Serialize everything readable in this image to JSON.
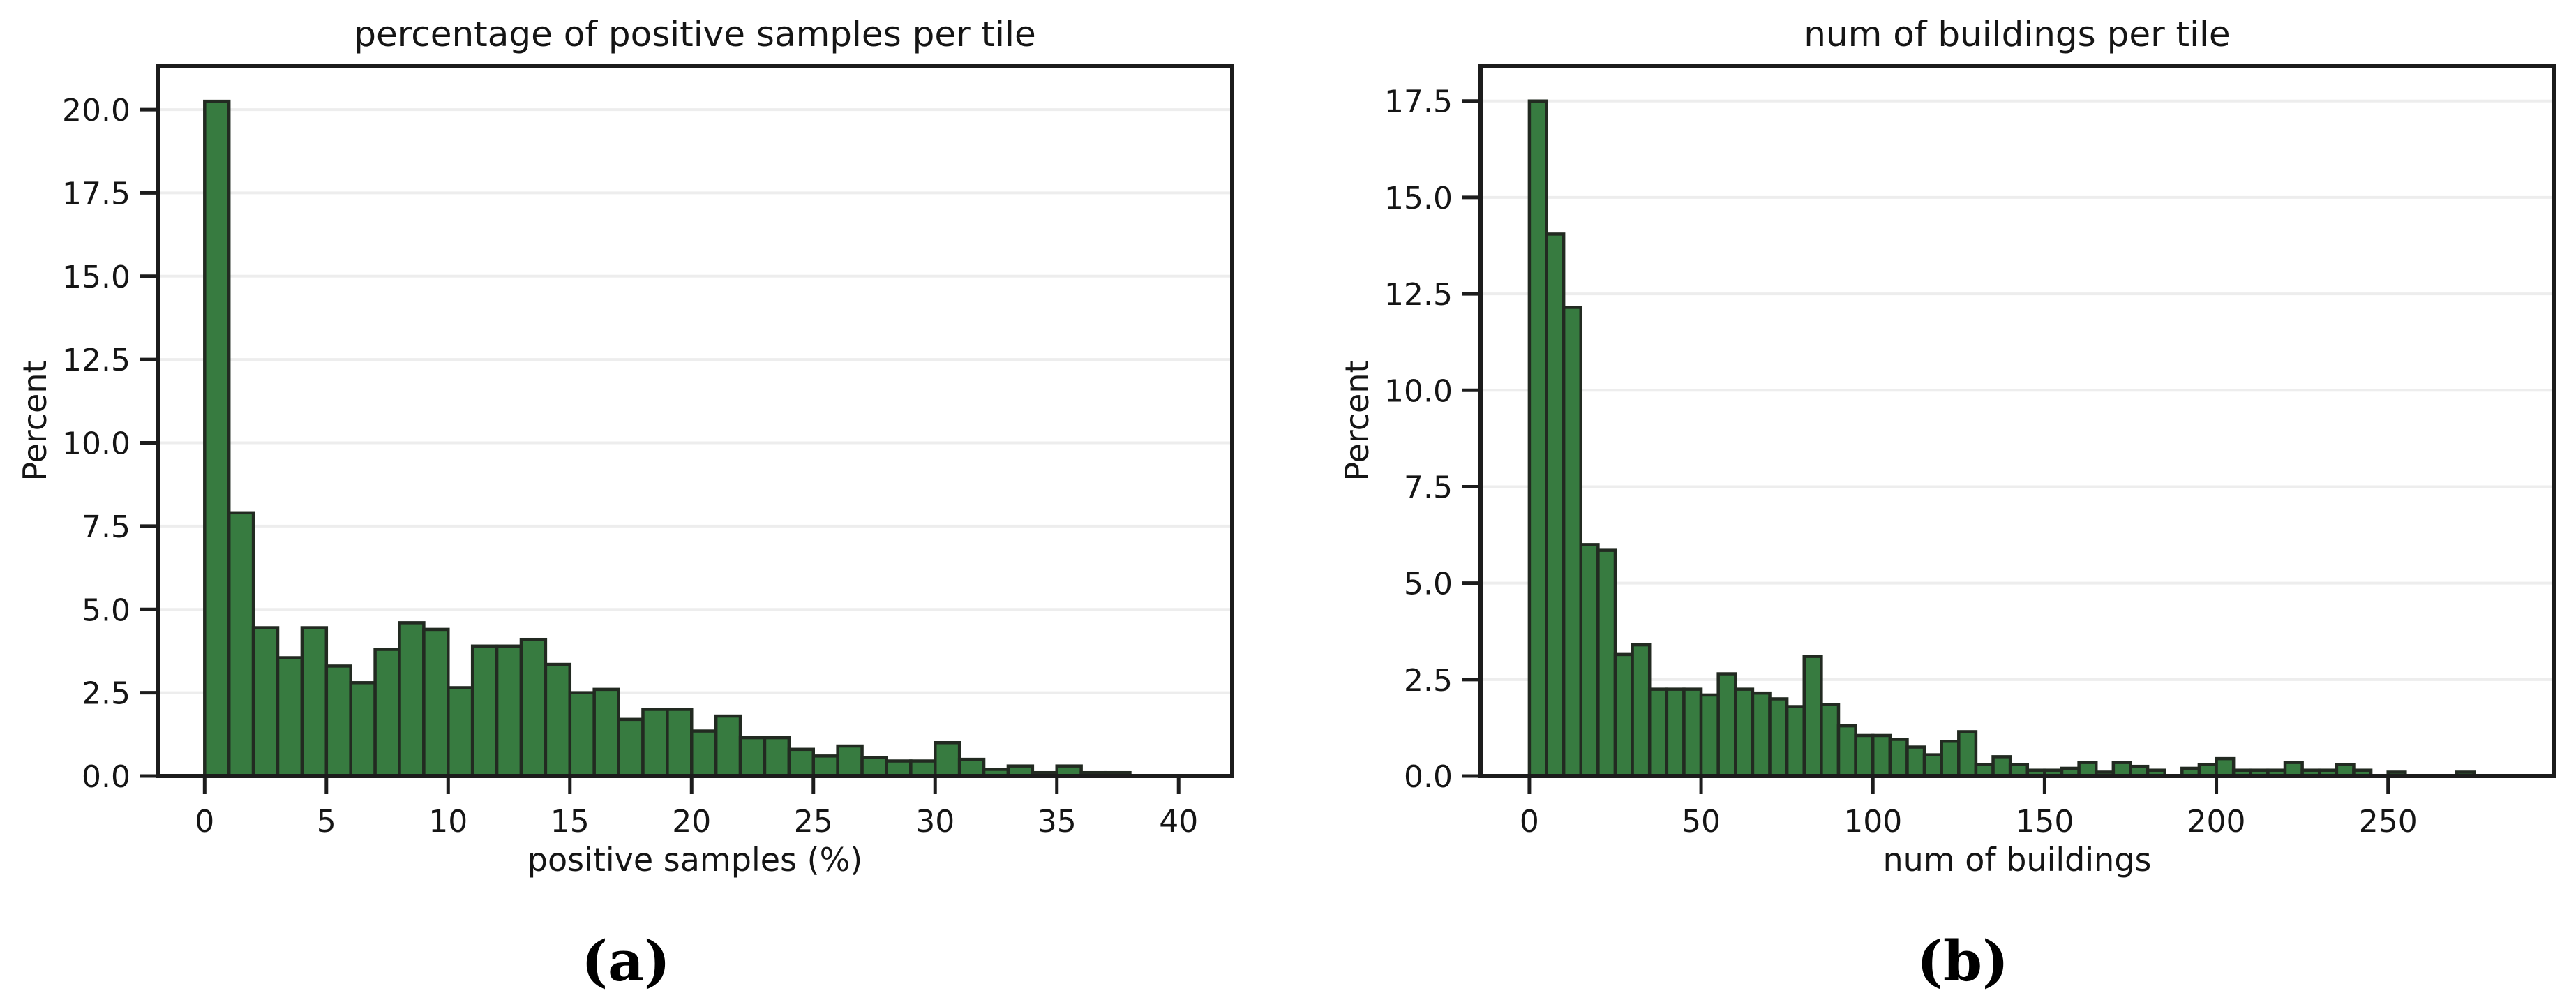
{
  "figure": {
    "background": "#ffffff",
    "bar_fill": "#377b40",
    "bar_edge": "#222a21",
    "grid_color": "#ededed",
    "spine_color": "#1c1c1c",
    "text_color": "#151515",
    "captions": [
      "(a)",
      "(b)"
    ]
  },
  "chart_data": [
    {
      "type": "bar",
      "title": "percentage of positive samples per tile",
      "xlabel": "positive samples (%)",
      "ylabel": "Percent",
      "bin_start": 0,
      "bin_width": 1,
      "values": [
        20.25,
        7.9,
        4.45,
        3.55,
        4.45,
        3.3,
        2.8,
        3.8,
        4.6,
        4.4,
        2.65,
        3.9,
        3.9,
        4.1,
        3.35,
        2.5,
        2.6,
        1.7,
        2.0,
        2.0,
        1.35,
        1.8,
        1.15,
        1.15,
        0.8,
        0.6,
        0.9,
        0.55,
        0.45,
        0.45,
        1.0,
        0.5,
        0.2,
        0.3,
        0.1,
        0.3,
        0.1,
        0.1
      ],
      "xticks": [
        0,
        5,
        10,
        15,
        20,
        25,
        30,
        35,
        40
      ],
      "yticks": [
        0.0,
        2.5,
        5.0,
        7.5,
        10.0,
        12.5,
        15.0,
        17.5,
        20.0
      ],
      "xlim": [
        -1.9,
        42.2
      ],
      "ylim": [
        0,
        21.3
      ],
      "grid": true,
      "legend_position": "none"
    },
    {
      "type": "bar",
      "title": "num of buildings per tile",
      "xlabel": "num of buildings",
      "ylabel": "Percent",
      "bin_start": 0,
      "bin_width": 5,
      "values": [
        17.5,
        14.05,
        12.15,
        6.0,
        5.85,
        3.15,
        3.4,
        2.25,
        2.25,
        2.25,
        2.1,
        2.65,
        2.25,
        2.15,
        2.0,
        1.8,
        3.1,
        1.85,
        1.3,
        1.05,
        1.05,
        0.95,
        0.75,
        0.55,
        0.9,
        1.15,
        0.3,
        0.5,
        0.3,
        0.15,
        0.15,
        0.2,
        0.35,
        0.1,
        0.35,
        0.25,
        0.15,
        0,
        0.2,
        0.3,
        0.45,
        0.15,
        0.15,
        0.15,
        0.35,
        0.15,
        0.15,
        0.3,
        0.15,
        0,
        0.1,
        0,
        0,
        0,
        0.1
      ],
      "xticks": [
        0,
        50,
        100,
        150,
        200,
        250
      ],
      "yticks": [
        0.0,
        2.5,
        5.0,
        7.5,
        10.0,
        12.5,
        15.0,
        17.5
      ],
      "xlim": [
        -14.2,
        298.2
      ],
      "ylim": [
        0,
        18.4
      ],
      "grid": true,
      "legend_position": "none"
    }
  ]
}
